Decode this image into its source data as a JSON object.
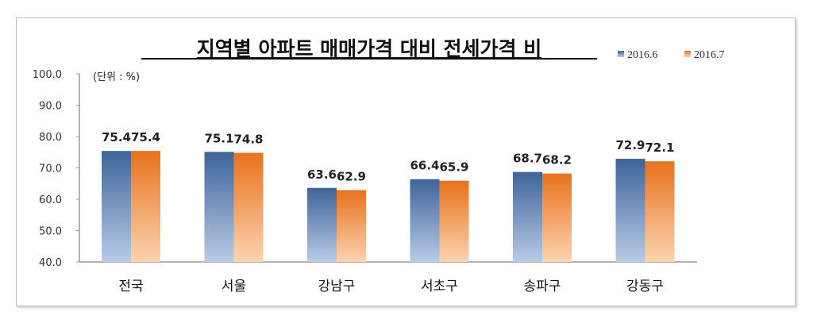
{
  "chart_data": {
    "type": "bar",
    "title": "지역별 아파트 매매가격 대비 전세가격 비",
    "unit_label": "(단위 : %)",
    "categories": [
      "전국",
      "서울",
      "강남구",
      "서초구",
      "송파구",
      "강동구"
    ],
    "series": [
      {
        "name": "2016.6",
        "values": [
          75.4,
          75.1,
          63.6,
          66.4,
          68.7,
          72.9
        ],
        "color": "#3e6499"
      },
      {
        "name": "2016.7",
        "values": [
          75.4,
          74.8,
          62.9,
          65.9,
          68.2,
          72.1
        ],
        "color": "#e8721c"
      }
    ],
    "ylim": [
      40,
      100
    ],
    "yticks": [
      "40.0",
      "50.0",
      "60.0",
      "70.0",
      "80.0",
      "90.0",
      "100.0"
    ],
    "legend_position": "top-right",
    "grid": false,
    "data_labels": true
  }
}
